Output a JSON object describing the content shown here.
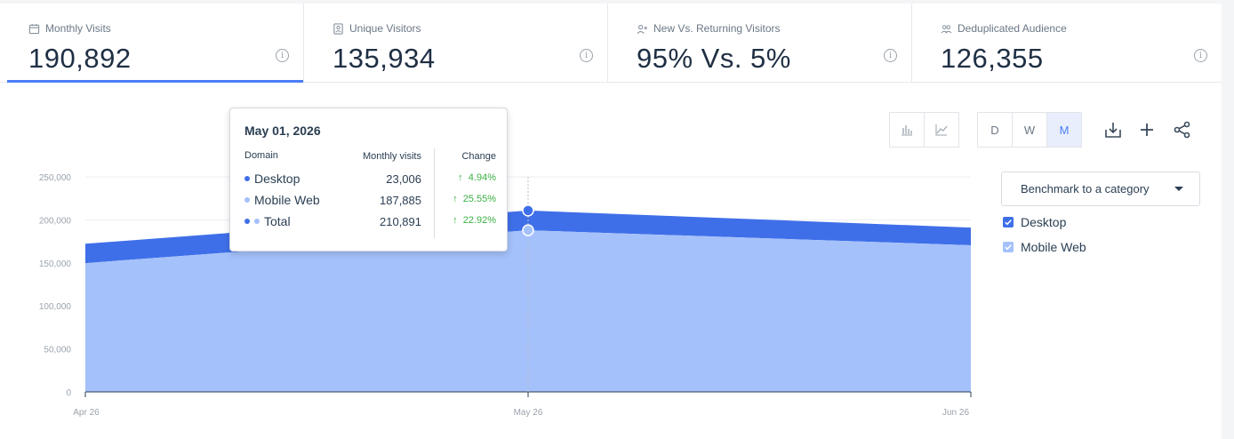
{
  "metrics": [
    {
      "label": "Monthly Visits",
      "value": "190,892",
      "icon": "calendar-icon",
      "active": true
    },
    {
      "label": "Unique Visitors",
      "value": "135,934",
      "icon": "person-badge-icon",
      "active": false
    },
    {
      "label": "New Vs. Returning Visitors",
      "value": "95% Vs. 5%",
      "icon": "person-plus-icon",
      "active": false
    },
    {
      "label": "Deduplicated Audience",
      "value": "126,355",
      "icon": "people-icon",
      "active": false
    }
  ],
  "info_glyph": "i",
  "tooltip": {
    "date": "May 01, 2026",
    "headers": {
      "domain": "Domain",
      "visits": "Monthly visits",
      "change": "Change"
    },
    "rows": [
      {
        "name": "Desktop",
        "visits": "23,006",
        "change": "4.94%"
      },
      {
        "name": "Mobile Web",
        "visits": "187,885",
        "change": "25.55%"
      },
      {
        "name": "Total",
        "visits": "210,891",
        "change": "22.92%"
      }
    ]
  },
  "controls": {
    "granularity": [
      "D",
      "W",
      "M"
    ],
    "selected_granularity": "M",
    "benchmark_label": "Benchmark to a category"
  },
  "legend": [
    {
      "name": "Desktop",
      "checked": true,
      "color": "#3f6fe8"
    },
    {
      "name": "Mobile Web",
      "checked": true,
      "color": "#a5c1fb"
    }
  ],
  "colors": {
    "accent": "#4a7ef5",
    "desktop": "#3f6fe8",
    "mobile": "#a5c1fb",
    "positive": "#3cb043"
  },
  "chart_data": {
    "type": "area",
    "stacked": true,
    "categories": [
      "Apr 26",
      "May 26",
      "Jun 26"
    ],
    "series": [
      {
        "name": "Mobile Web",
        "values": [
          149700,
          187885,
          170500
        ]
      },
      {
        "name": "Desktop",
        "values": [
          22500,
          23006,
          20500
        ]
      }
    ],
    "y_ticks": [
      "0",
      "50,000",
      "100,000",
      "150,000",
      "200,000",
      "250,000"
    ],
    "ylim": [
      0,
      250000
    ],
    "grid": true
  }
}
